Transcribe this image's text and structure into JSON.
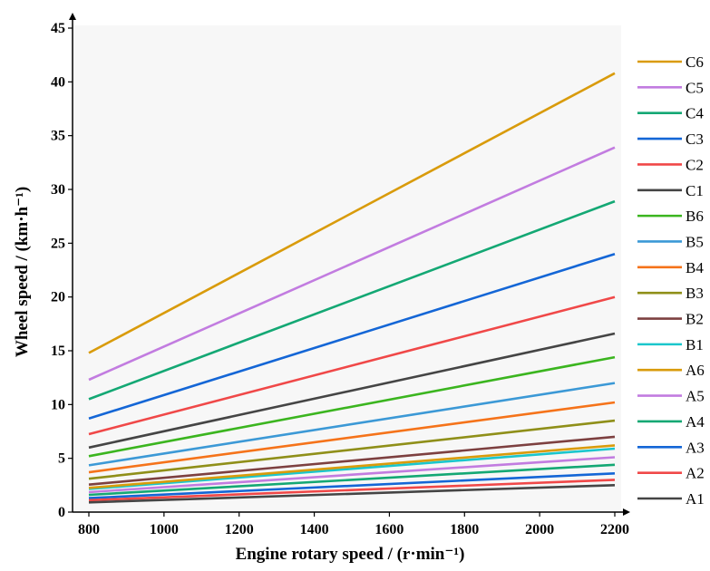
{
  "chart_data": {
    "type": "line",
    "xlabel": "Engine rotary speed / (r·min⁻¹)",
    "ylabel": "Wheel speed / (km·h⁻¹)",
    "xlim": [
      800,
      2200
    ],
    "ylim": [
      0,
      45
    ],
    "xticks": [
      800,
      1000,
      1200,
      1400,
      1600,
      1800,
      2000,
      2200
    ],
    "yticks": [
      0,
      5,
      10,
      15,
      20,
      25,
      30,
      35,
      40,
      45
    ],
    "grid": false,
    "legend_position": "right",
    "x": [
      800,
      2200
    ],
    "series": [
      {
        "name": "C6",
        "color": "#D99B0B",
        "values": [
          14.8,
          40.8
        ]
      },
      {
        "name": "C5",
        "color": "#C27CE0",
        "values": [
          12.3,
          33.9
        ]
      },
      {
        "name": "C4",
        "color": "#14A874",
        "values": [
          10.5,
          28.9
        ]
      },
      {
        "name": "C3",
        "color": "#1466D6",
        "values": [
          8.7,
          24.0
        ]
      },
      {
        "name": "C2",
        "color": "#F04848",
        "values": [
          7.25,
          20.0
        ]
      },
      {
        "name": "C1",
        "color": "#454545",
        "values": [
          6.0,
          16.6
        ]
      },
      {
        "name": "B6",
        "color": "#3BB51F",
        "values": [
          5.2,
          14.4
        ]
      },
      {
        "name": "B5",
        "color": "#3C99D6",
        "values": [
          4.35,
          12.0
        ]
      },
      {
        "name": "B4",
        "color": "#F5731A",
        "values": [
          3.7,
          10.2
        ]
      },
      {
        "name": "B3",
        "color": "#8F8F19",
        "values": [
          3.1,
          8.5
        ]
      },
      {
        "name": "B2",
        "color": "#7D4040",
        "values": [
          2.55,
          7.0
        ]
      },
      {
        "name": "B1",
        "color": "#1BC6CC",
        "values": [
          2.15,
          5.9
        ]
      },
      {
        "name": "A6",
        "color": "#D99B0B",
        "values": [
          2.25,
          6.2
        ]
      },
      {
        "name": "A5",
        "color": "#C27CE0",
        "values": [
          1.85,
          5.1
        ]
      },
      {
        "name": "A4",
        "color": "#14A874",
        "values": [
          1.6,
          4.4
        ]
      },
      {
        "name": "A3",
        "color": "#1466D6",
        "values": [
          1.3,
          3.6
        ]
      },
      {
        "name": "A2",
        "color": "#F04848",
        "values": [
          1.1,
          3.0
        ]
      },
      {
        "name": "A1",
        "color": "#454545",
        "values": [
          0.9,
          2.5
        ]
      }
    ]
  }
}
